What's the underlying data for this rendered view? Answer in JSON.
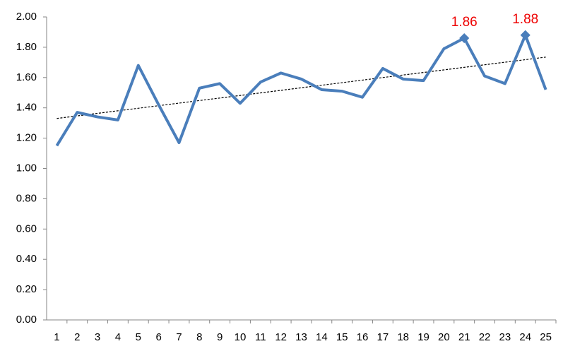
{
  "chart_data": {
    "type": "line",
    "categories": [
      "1",
      "2",
      "3",
      "4",
      "5",
      "6",
      "7",
      "8",
      "9",
      "10",
      "11",
      "12",
      "13",
      "14",
      "15",
      "16",
      "17",
      "18",
      "19",
      "20",
      "21",
      "22",
      "23",
      "24",
      "25"
    ],
    "values": [
      1.15,
      1.37,
      1.34,
      1.32,
      1.68,
      1.42,
      1.17,
      1.53,
      1.56,
      1.43,
      1.57,
      1.63,
      1.59,
      1.52,
      1.51,
      1.47,
      1.66,
      1.59,
      1.58,
      1.79,
      1.86,
      1.61,
      1.56,
      1.88,
      1.52
    ],
    "value_labels": [
      null,
      null,
      null,
      null,
      null,
      null,
      null,
      null,
      null,
      null,
      null,
      null,
      null,
      null,
      null,
      null,
      null,
      null,
      null,
      null,
      "1.86",
      null,
      null,
      "1.88",
      null
    ],
    "color": "#4a7ebb",
    "label_color": "#ee0000",
    "trendline": true,
    "grid": false,
    "ylim": [
      0,
      2
    ],
    "yticks": [
      {
        "value": 0,
        "label": "0.00"
      },
      {
        "value": 0.2,
        "label": "0.20"
      },
      {
        "value": 0.4,
        "label": "0.40"
      },
      {
        "value": 0.6,
        "label": "0.60"
      },
      {
        "value": 0.8,
        "label": "0.80"
      },
      {
        "value": 1,
        "label": "1.00"
      },
      {
        "value": 1.2,
        "label": "1.20"
      },
      {
        "value": 1.4,
        "label": "1.40"
      },
      {
        "value": 1.6,
        "label": "1.60"
      },
      {
        "value": 1.8,
        "label": "1.80"
      },
      {
        "value": 2,
        "label": "2.00"
      }
    ]
  }
}
